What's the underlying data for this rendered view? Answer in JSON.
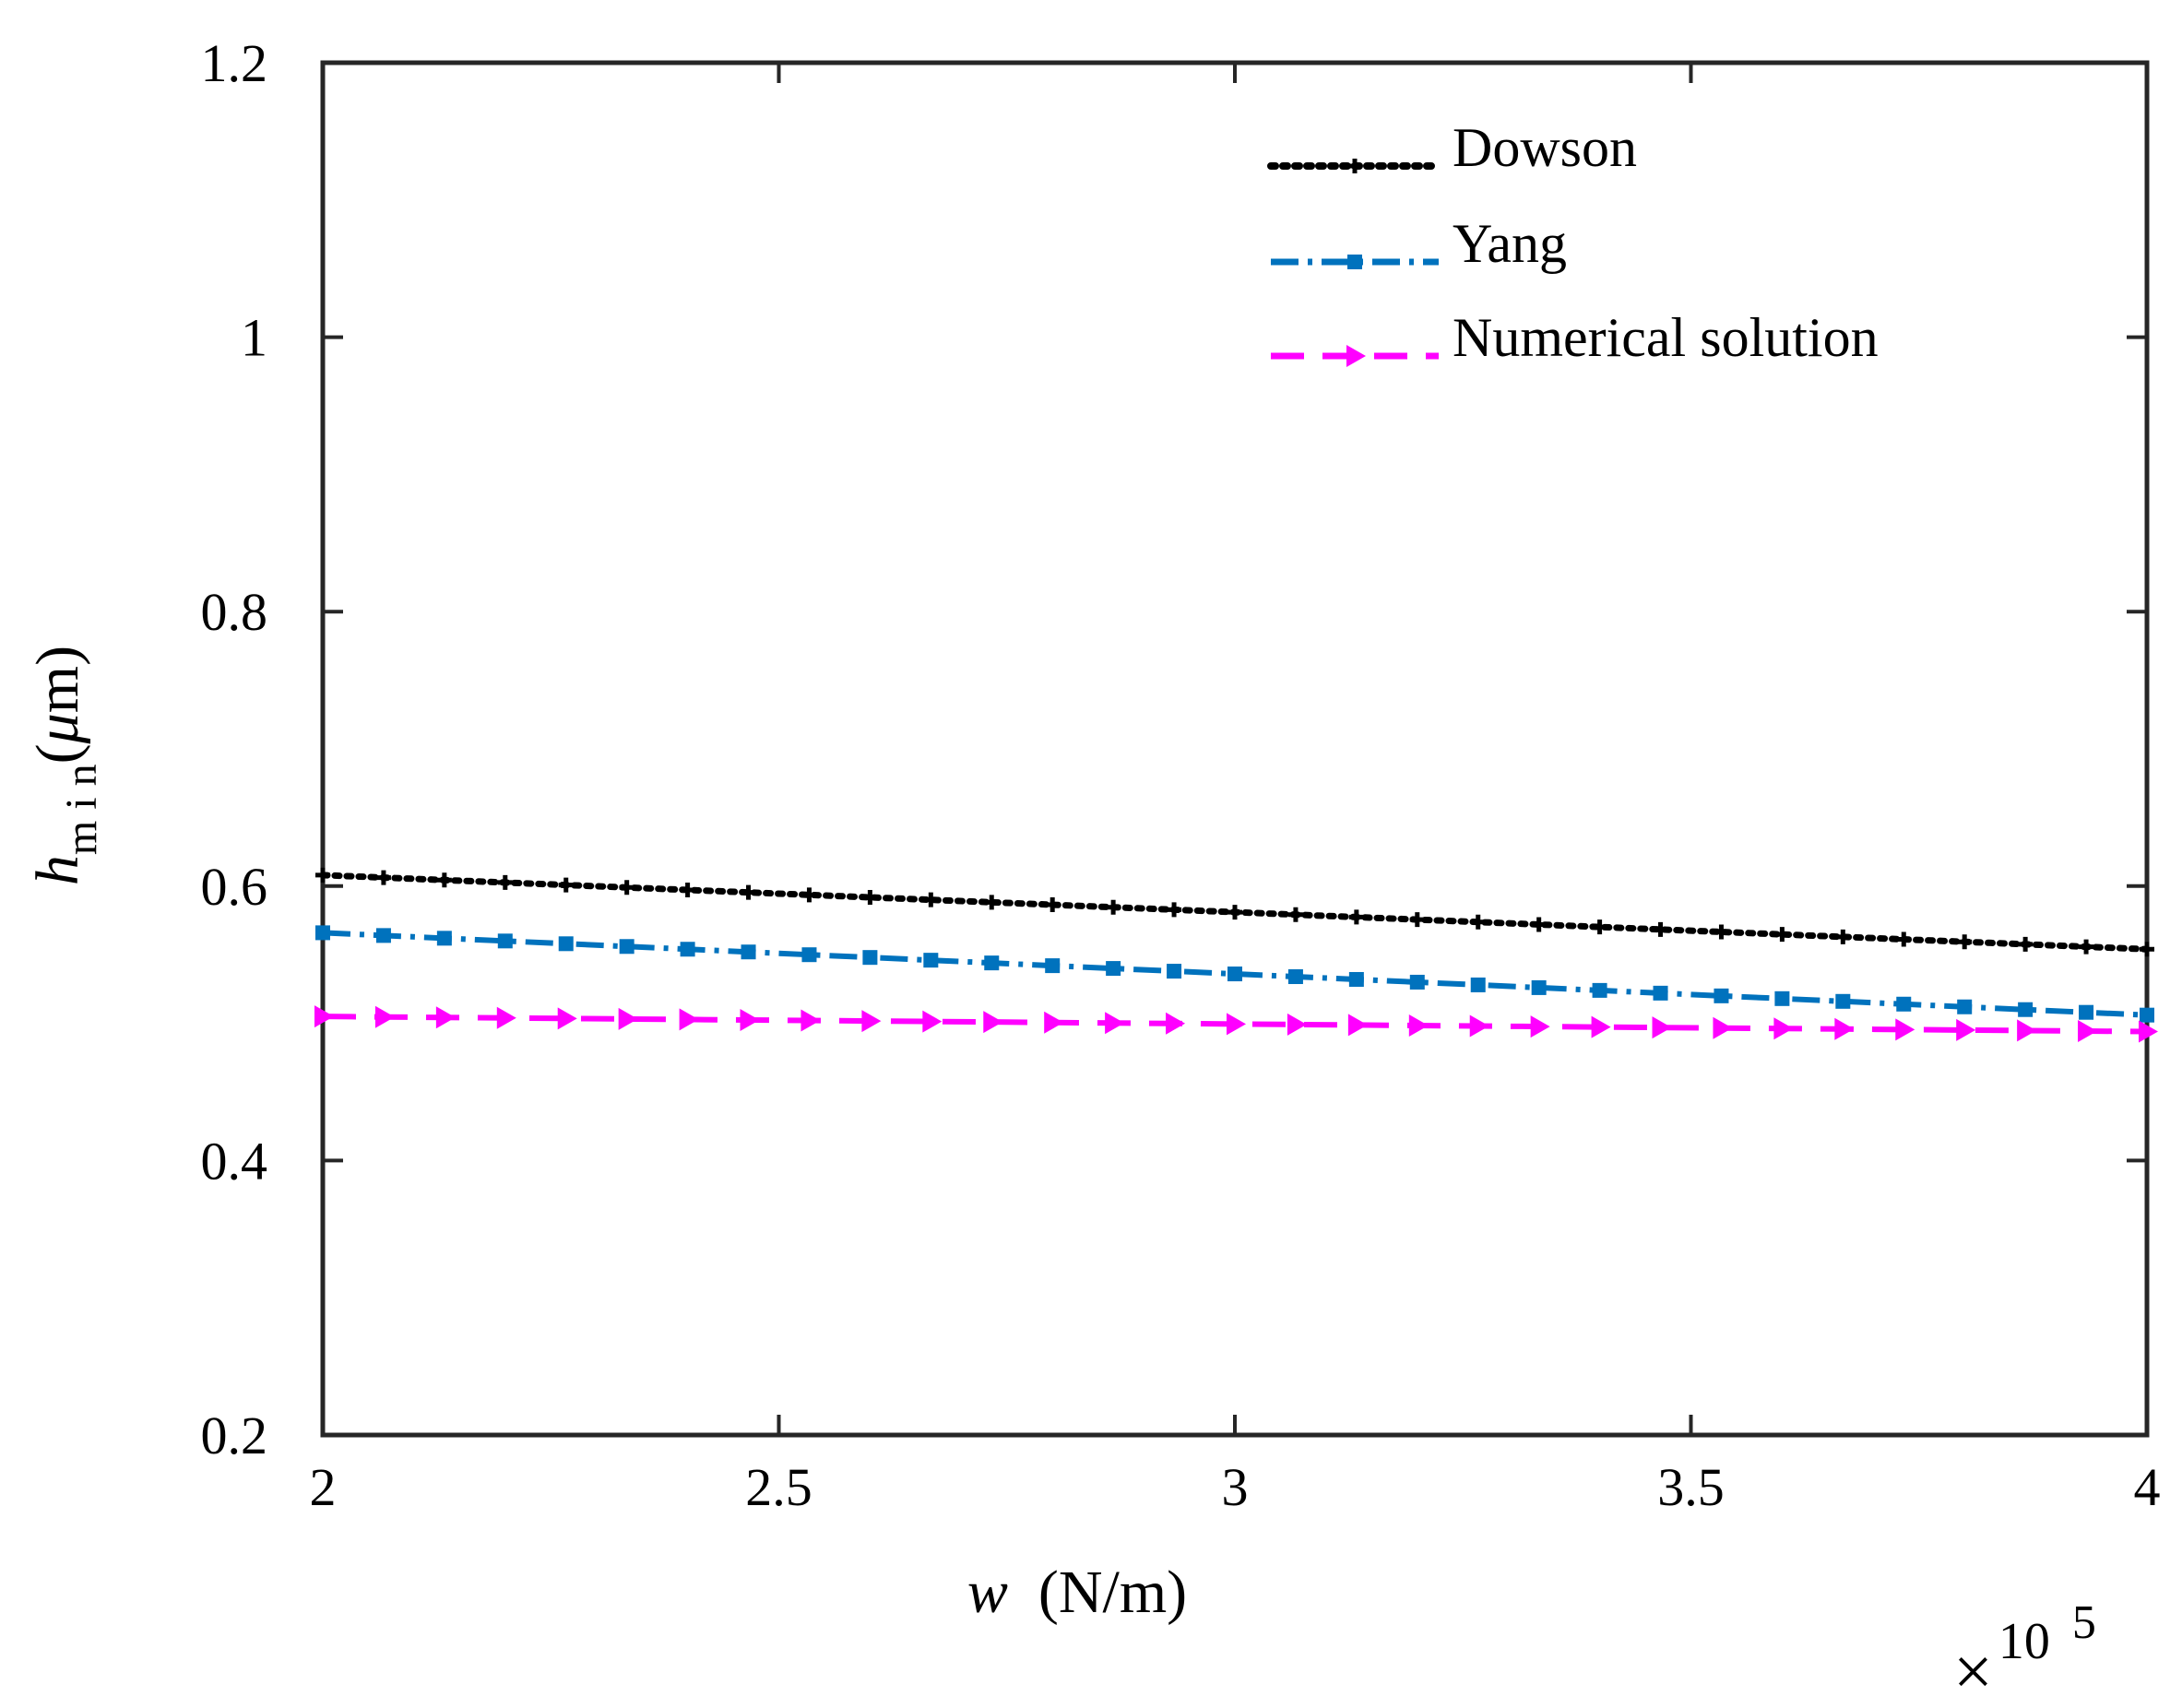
{
  "chart_data": {
    "type": "line",
    "title": "",
    "xlabel": {
      "symbol": "w",
      "units": "(N/m)"
    },
    "ylabel": {
      "symbol": "h",
      "subscript": "m i n",
      "units_prefix": "(",
      "mu": "μ",
      "units_suffix": "m)"
    },
    "x_multiplier": {
      "times": "×",
      "base": "10",
      "exponent": "5"
    },
    "xlim": [
      2,
      4
    ],
    "ylim": [
      0.2,
      1.2
    ],
    "x_ticks": [
      2,
      2.5,
      3,
      3.5,
      4
    ],
    "x_tick_labels": [
      "2",
      "2.5",
      "3",
      "3.5",
      "4"
    ],
    "y_ticks": [
      0.2,
      0.4,
      0.6,
      0.8,
      1.0,
      1.2
    ],
    "y_tick_labels": [
      "0.2",
      "0.4",
      "0.6",
      "0.8",
      "1",
      "1.2"
    ],
    "grid": false,
    "legend_position": "top-right",
    "series": [
      {
        "name": "Dowson",
        "color": "#000000",
        "dash": "dotted",
        "marker": "plus",
        "x_start": 2,
        "x_end": 4,
        "y_start": 0.608,
        "y_end": 0.554,
        "points": 31
      },
      {
        "name": "Yang",
        "color": "#0072BD",
        "dash": "dashdot",
        "marker": "square",
        "x_start": 2,
        "x_end": 4,
        "y_start": 0.566,
        "y_end": 0.506,
        "points": 31
      },
      {
        "name": "Numerical solution",
        "color": "#FF00FF",
        "dash": "dashed",
        "marker": "triangle-right",
        "x_start": 2,
        "x_end": 4,
        "y_start": 0.505,
        "y_end": 0.494,
        "points": 31
      }
    ]
  }
}
